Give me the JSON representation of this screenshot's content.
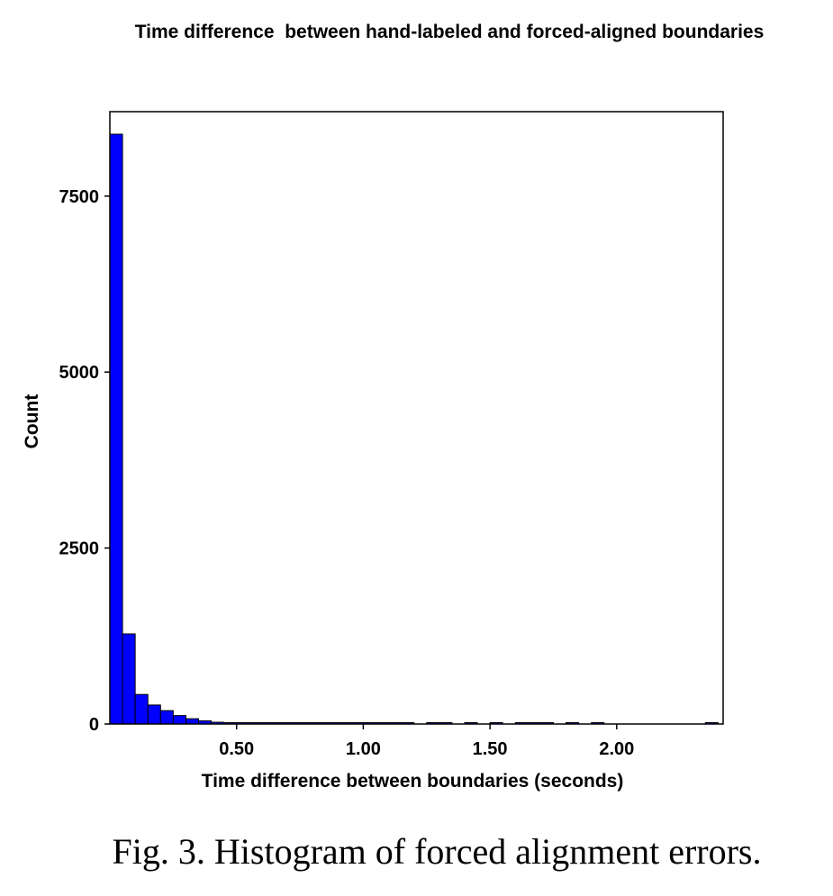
{
  "chart_data": {
    "type": "bar",
    "title": "Time difference  between hand-labeled and forced-aligned boundaries",
    "xlabel": "Time difference between boundaries (seconds)",
    "ylabel": "Count",
    "xlim": [
      0.0,
      2.42
    ],
    "ylim": [
      0,
      8700
    ],
    "grid": false,
    "bar_color": "#0000ff",
    "x_ticks": [
      {
        "value": 0.5,
        "label": "0.50"
      },
      {
        "value": 1.0,
        "label": "1.00"
      },
      {
        "value": 1.5,
        "label": "1.50"
      },
      {
        "value": 2.0,
        "label": "2.00"
      }
    ],
    "y_ticks": [
      {
        "value": 0,
        "label": "0"
      },
      {
        "value": 2500,
        "label": "2500"
      },
      {
        "value": 5000,
        "label": "5000"
      },
      {
        "value": 7500,
        "label": "7500"
      }
    ],
    "bin_width": 0.05,
    "bins": [
      {
        "x": 0.0,
        "count": 8380
      },
      {
        "x": 0.05,
        "count": 1280
      },
      {
        "x": 0.1,
        "count": 420
      },
      {
        "x": 0.15,
        "count": 270
      },
      {
        "x": 0.2,
        "count": 190
      },
      {
        "x": 0.25,
        "count": 120
      },
      {
        "x": 0.3,
        "count": 75
      },
      {
        "x": 0.35,
        "count": 45
      },
      {
        "x": 0.4,
        "count": 25
      },
      {
        "x": 0.45,
        "count": 12
      },
      {
        "x": 0.5,
        "count": 8
      },
      {
        "x": 0.55,
        "count": 5
      },
      {
        "x": 0.6,
        "count": 4
      },
      {
        "x": 0.65,
        "count": 3
      },
      {
        "x": 0.7,
        "count": 3
      },
      {
        "x": 0.75,
        "count": 2
      },
      {
        "x": 0.8,
        "count": 2
      },
      {
        "x": 0.85,
        "count": 2
      },
      {
        "x": 0.9,
        "count": 2
      },
      {
        "x": 0.95,
        "count": 1
      },
      {
        "x": 1.0,
        "count": 1
      },
      {
        "x": 1.05,
        "count": 1
      },
      {
        "x": 1.1,
        "count": 1
      },
      {
        "x": 1.15,
        "count": 1
      },
      {
        "x": 1.25,
        "count": 1
      },
      {
        "x": 1.3,
        "count": 1
      },
      {
        "x": 1.4,
        "count": 1
      },
      {
        "x": 1.5,
        "count": 1
      },
      {
        "x": 1.6,
        "count": 1
      },
      {
        "x": 1.65,
        "count": 1
      },
      {
        "x": 1.7,
        "count": 1
      },
      {
        "x": 1.8,
        "count": 1
      },
      {
        "x": 1.9,
        "count": 1
      },
      {
        "x": 2.35,
        "count": 1
      }
    ]
  },
  "caption": "Fig. 3. Histogram of forced alignment errors."
}
